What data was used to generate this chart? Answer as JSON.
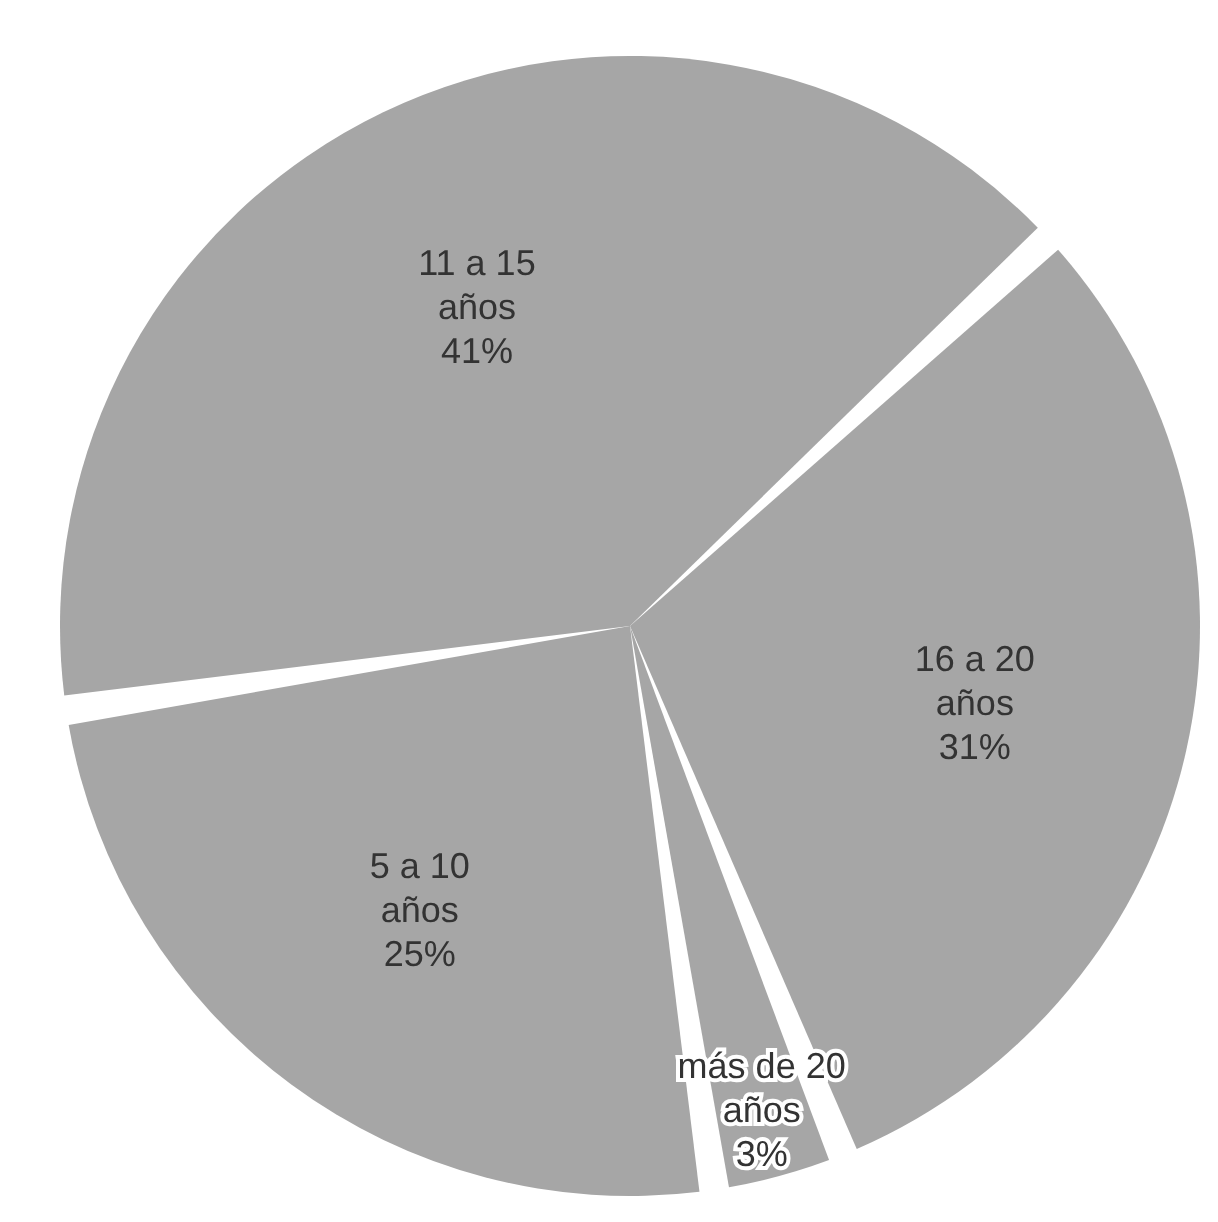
{
  "chart_data": {
    "type": "pie",
    "categories": [
      "11 a 15 años",
      "16 a 20 años",
      "más de 20 años",
      "5 a 10 años"
    ],
    "values": [
      41,
      31,
      3,
      25
    ],
    "value_labels": [
      "41%",
      "31%",
      "3%",
      "25%"
    ],
    "colors": [
      "#a6a6a6",
      "#a6a6a6",
      "#a6a6a6",
      "#a6a6a6"
    ],
    "legend": false
  }
}
